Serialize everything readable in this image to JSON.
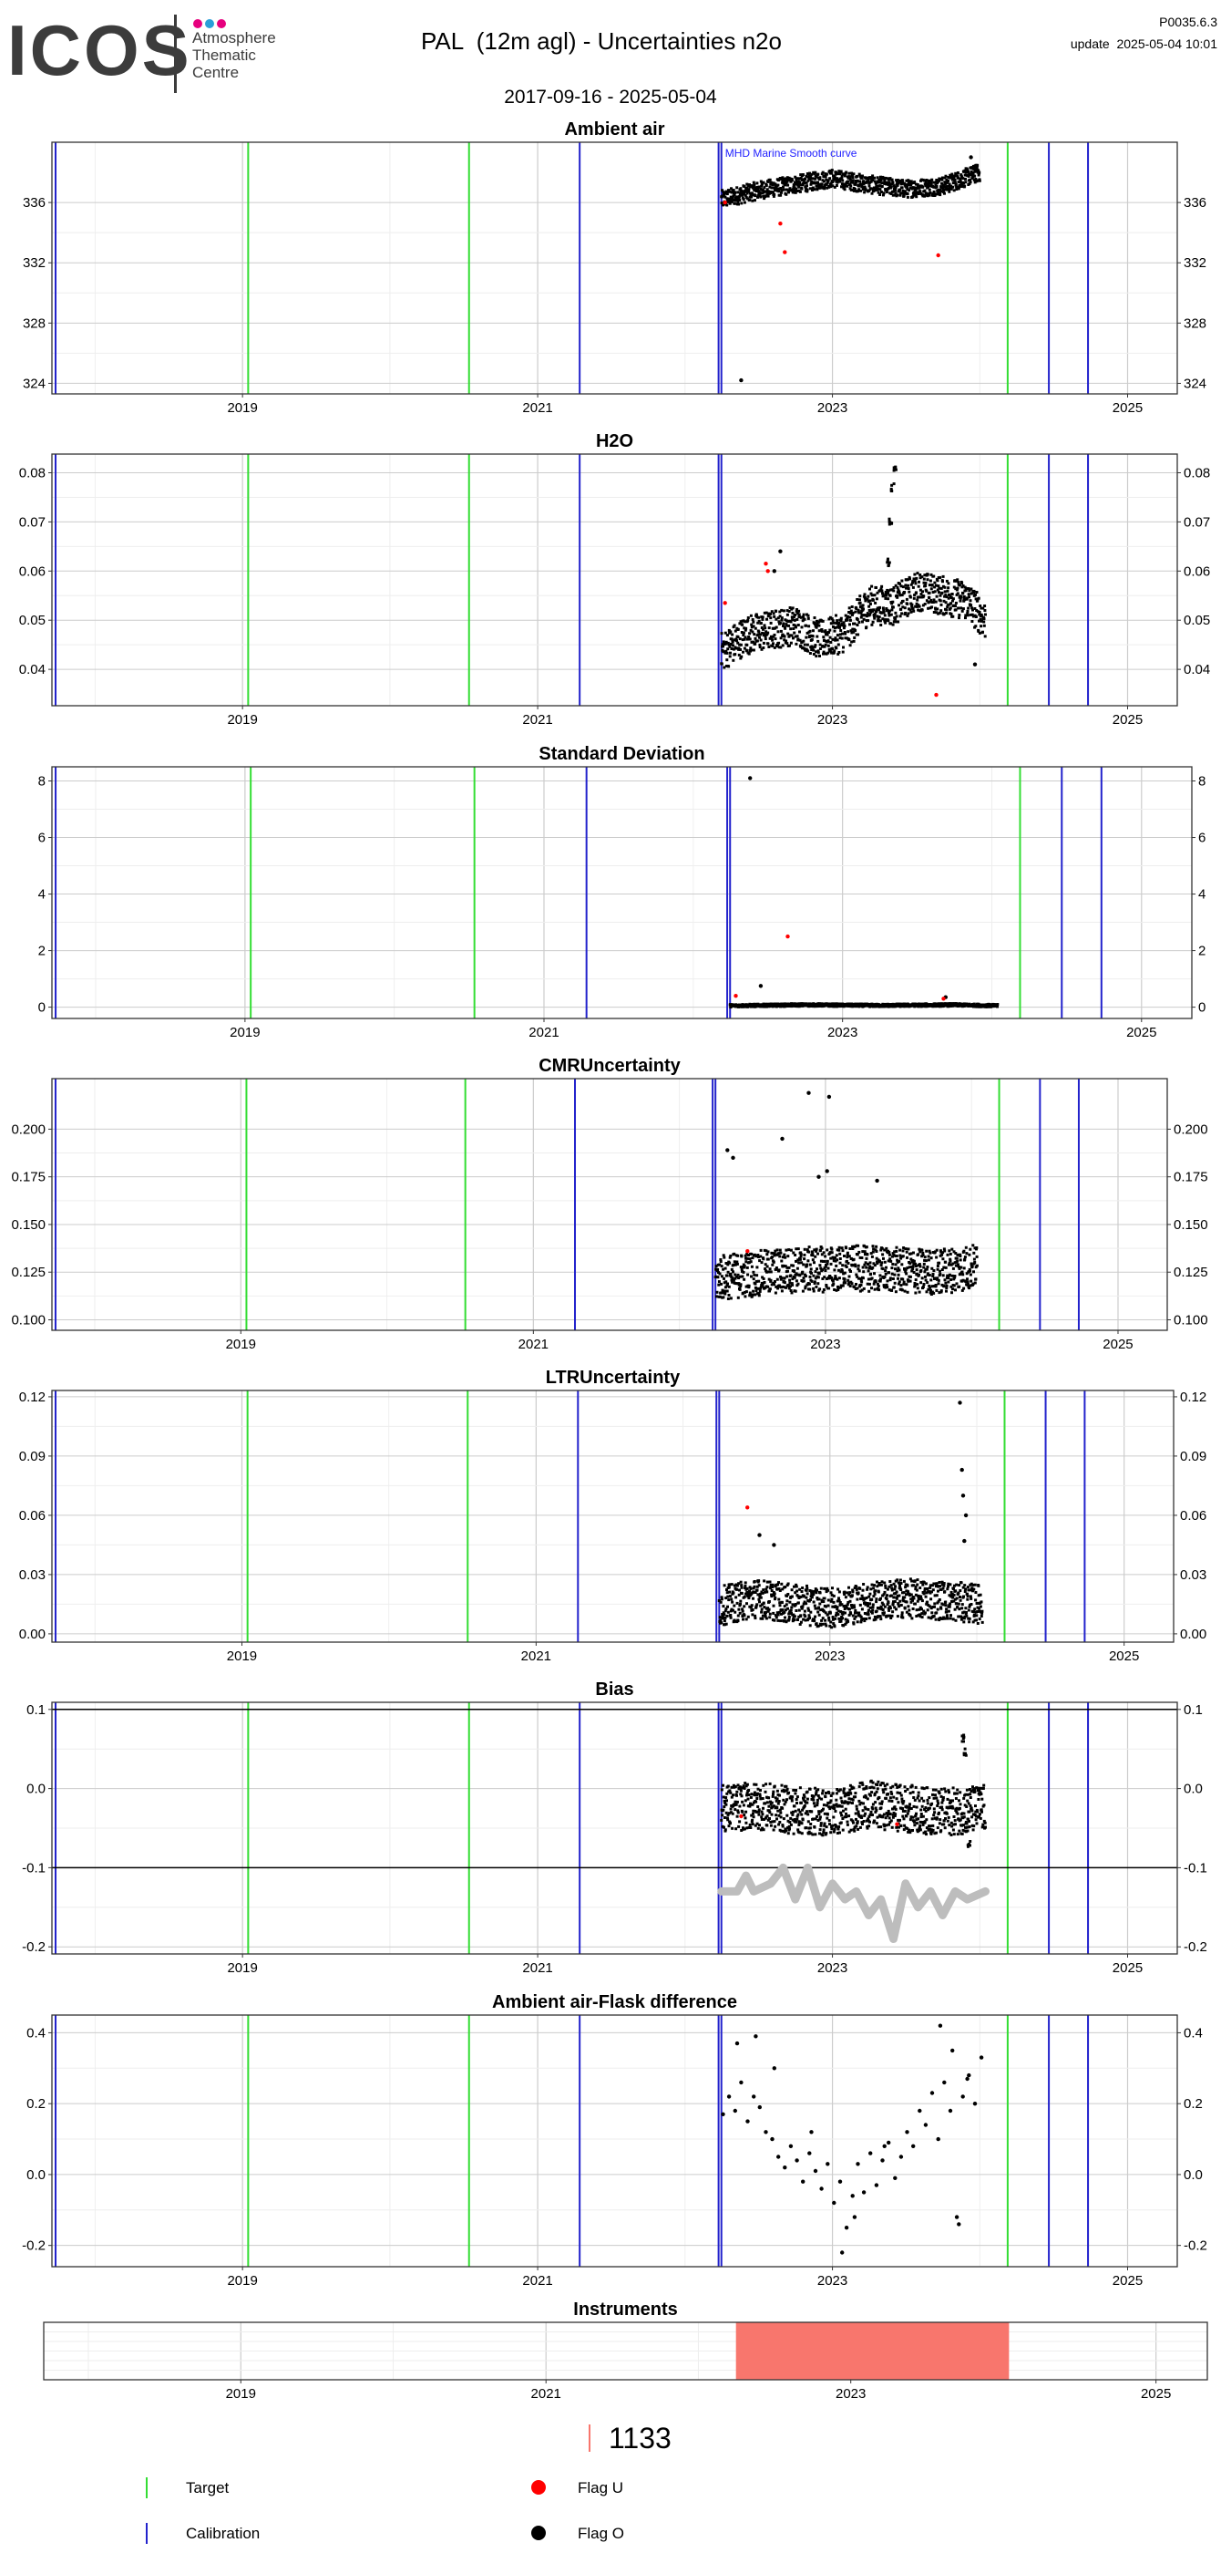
{
  "header": {
    "logo_word": "ICOS",
    "logo_line1": "Atmosphere",
    "logo_line2": "Thematic",
    "logo_line3": "Centre",
    "logo_dot_colors": [
      "#e6007e",
      "#2a9fd8",
      "#e6007e"
    ],
    "title": "PAL  (12m agl) - Uncertainties n2o",
    "date_range": "2017-09-16 - 2025-05-04",
    "version": "P0035.6.3",
    "update": "update  2025-05-04 10:01"
  },
  "colors": {
    "target": "#33dd33",
    "calibration": "#2222cc",
    "flag_u": "#ff0000",
    "flag_o": "#000000",
    "bias_smooth": "#bdbdbd",
    "instrument_bar": "#f8766d",
    "grid_major": "#cccccc",
    "grid_minor": "#eeeeee"
  },
  "chart_data": [
    {
      "type": "scatter",
      "title": "Ambient air",
      "annotation": "MHD Marine Smooth curve",
      "xlabel": "",
      "ylabel": "",
      "x_ticks": [
        "2019",
        "2021",
        "2023",
        "2025"
      ],
      "y_ticks": [
        324,
        328,
        332,
        336
      ],
      "ylim": [
        323.3,
        340
      ],
      "xlim": [
        "2017-09-16",
        "2025-05-04"
      ],
      "target_lines": [
        "2019-01-15",
        "2020-07-15",
        "2024-03-10"
      ],
      "calibration_lines": [
        "2017-09-25",
        "2021-04-15",
        "2022-03-25",
        "2022-04-01",
        "2024-06-20",
        "2024-09-25"
      ],
      "series": [
        {
          "name": "Flag O",
          "style": "band",
          "x": [
            "2022-04-01",
            "2022-07-01",
            "2022-10-01",
            "2023-01-01",
            "2023-04-01",
            "2023-07-01",
            "2023-10-01",
            "2024-01-01"
          ],
          "y": [
            336.2,
            336.8,
            337.2,
            337.6,
            337.2,
            336.9,
            337.1,
            338.0
          ],
          "spread": 0.6
        },
        {
          "name": "Flag O",
          "x": [
            "2022-05-20",
            "2023-12-10",
            "2023-12-20"
          ],
          "y": [
            324.2,
            339.0,
            338.4
          ]
        },
        {
          "name": "Flag U",
          "x": [
            "2022-04-10",
            "2022-08-25",
            "2022-09-05",
            "2023-09-20"
          ],
          "y": [
            336.0,
            334.6,
            332.7,
            332.5
          ]
        }
      ]
    },
    {
      "type": "scatter",
      "title": "H2O",
      "xlabel": "",
      "ylabel": "",
      "x_ticks": [
        "2019",
        "2021",
        "2023",
        "2025"
      ],
      "y_ticks": [
        0.04,
        0.05,
        0.06,
        0.07,
        0.08
      ],
      "ylim": [
        0.0326,
        0.0838
      ],
      "xlim": [
        "2017-09-16",
        "2025-05-04"
      ],
      "target_lines": [
        "2019-01-15",
        "2020-07-15",
        "2024-03-10"
      ],
      "calibration_lines": [
        "2017-09-25",
        "2021-04-15",
        "2022-03-25",
        "2022-04-01",
        "2024-06-20",
        "2024-09-25"
      ],
      "series": [
        {
          "name": "Flag O",
          "style": "band",
          "x": [
            "2022-04-01",
            "2022-06-01",
            "2022-08-01",
            "2022-10-01",
            "2022-12-01",
            "2023-02-01",
            "2023-04-01",
            "2023-06-01",
            "2023-08-01",
            "2023-10-01",
            "2023-12-01",
            "2024-01-15"
          ],
          "y": [
            0.0435,
            0.047,
            0.048,
            0.049,
            0.046,
            0.0475,
            0.053,
            0.053,
            0.056,
            0.055,
            0.054,
            0.05
          ],
          "spread": 0.004
        },
        {
          "name": "Flag O",
          "style": "spike",
          "x": [
            "2023-05-15",
            "2023-05-20",
            "2023-05-25",
            "2023-05-30",
            "2023-06-05"
          ],
          "y": [
            0.055,
            0.062,
            0.07,
            0.077,
            0.081
          ]
        },
        {
          "name": "Flag O",
          "x": [
            "2022-08-25",
            "2022-08-10",
            "2023-12-20"
          ],
          "y": [
            0.064,
            0.06,
            0.041
          ]
        },
        {
          "name": "Flag U",
          "x": [
            "2022-04-10",
            "2022-07-20",
            "2022-07-25",
            "2023-09-15"
          ],
          "y": [
            0.0535,
            0.0615,
            0.06,
            0.0348
          ]
        }
      ]
    },
    {
      "type": "scatter",
      "title": "Standard Deviation",
      "xlabel": "",
      "ylabel": "",
      "x_ticks": [
        "2019",
        "2021",
        "2023",
        "2025"
      ],
      "y_ticks": [
        0,
        2,
        4,
        6,
        8
      ],
      "ylim": [
        -0.4,
        8.5
      ],
      "xlim": [
        "2017-09-16",
        "2025-05-04"
      ],
      "target_lines": [
        "2019-01-15",
        "2020-07-15",
        "2024-03-10"
      ],
      "calibration_lines": [
        "2017-09-25",
        "2021-04-15",
        "2022-03-25",
        "2022-04-01",
        "2024-06-20",
        "2024-09-25"
      ],
      "series": [
        {
          "name": "Flag O",
          "style": "band",
          "x": [
            "2022-04-01",
            "2022-10-01",
            "2023-04-01",
            "2023-10-01",
            "2024-01-15"
          ],
          "y": [
            0.05,
            0.08,
            0.06,
            0.08,
            0.05
          ],
          "spread": 0.05
        },
        {
          "name": "Flag O",
          "x": [
            "2022-05-20",
            "2022-06-15",
            "2023-09-10"
          ],
          "y": [
            8.1,
            0.75,
            0.35
          ]
        },
        {
          "name": "Flag U",
          "x": [
            "2022-04-15",
            "2022-08-20",
            "2023-09-05"
          ],
          "y": [
            0.4,
            2.5,
            0.3
          ]
        }
      ]
    },
    {
      "type": "scatter",
      "title": "CMRUncertainty",
      "xlabel": "",
      "ylabel": "",
      "x_ticks": [
        "2019",
        "2021",
        "2023",
        "2025"
      ],
      "y_ticks": [
        0.1,
        0.125,
        0.15,
        0.175,
        0.2
      ],
      "y_labels": [
        "0.100",
        "0.125",
        "0.150",
        "0.175",
        "0.200"
      ],
      "ylim": [
        0.0945,
        0.2265
      ],
      "xlim": [
        "2017-09-16",
        "2025-05-04"
      ],
      "target_lines": [
        "2019-01-15",
        "2020-07-15",
        "2024-03-10"
      ],
      "calibration_lines": [
        "2017-09-25",
        "2021-04-15",
        "2022-03-25",
        "2022-04-01",
        "2024-06-20",
        "2024-09-25"
      ],
      "series": [
        {
          "name": "Flag O",
          "style": "band",
          "x": [
            "2022-04-01",
            "2022-10-01",
            "2023-04-01",
            "2023-10-01",
            "2024-01-15"
          ],
          "y": [
            0.122,
            0.126,
            0.127,
            0.125,
            0.128
          ],
          "spread": 0.012
        },
        {
          "name": "Flag O",
          "x": [
            "2022-05-01",
            "2022-05-15",
            "2022-09-15",
            "2022-11-20",
            "2022-12-15",
            "2023-01-10",
            "2023-05-10",
            "2023-01-05"
          ],
          "y": [
            0.189,
            0.185,
            0.195,
            0.219,
            0.175,
            0.217,
            0.173,
            0.178
          ]
        },
        {
          "name": "Flag U",
          "x": [
            "2022-06-20"
          ],
          "y": [
            0.136
          ]
        }
      ]
    },
    {
      "type": "scatter",
      "title": "LTRUncertainty",
      "xlabel": "",
      "ylabel": "",
      "x_ticks": [
        "2019",
        "2021",
        "2023",
        "2025"
      ],
      "y_ticks": [
        0,
        0.03,
        0.06,
        0.09,
        0.12
      ],
      "y_labels": [
        "0.00",
        "0.03",
        "0.06",
        "0.09",
        "0.12"
      ],
      "ylim": [
        -0.0042,
        0.1232
      ],
      "xlim": [
        "2017-09-16",
        "2025-05-04"
      ],
      "target_lines": [
        "2019-01-15",
        "2020-07-15",
        "2024-03-10"
      ],
      "calibration_lines": [
        "2017-09-25",
        "2021-04-15",
        "2022-03-25",
        "2022-04-01",
        "2024-06-20",
        "2024-09-25"
      ],
      "series": [
        {
          "name": "Flag O",
          "style": "band",
          "x": [
            "2022-04-01",
            "2022-07-01",
            "2022-10-01",
            "2023-01-01",
            "2023-04-01",
            "2023-07-01",
            "2023-10-01",
            "2024-01-15"
          ],
          "y": [
            0.014,
            0.018,
            0.015,
            0.013,
            0.016,
            0.018,
            0.017,
            0.015
          ],
          "spread": 0.01
        },
        {
          "name": "Flag O",
          "x": [
            "2023-11-20",
            "2023-11-25",
            "2023-11-28",
            "2023-12-01",
            "2023-12-05",
            "2022-07-10",
            "2022-08-15"
          ],
          "y": [
            0.117,
            0.083,
            0.07,
            0.047,
            0.06,
            0.05,
            0.045
          ]
        },
        {
          "name": "Flag U",
          "x": [
            "2022-06-10"
          ],
          "y": [
            0.064
          ]
        }
      ]
    },
    {
      "type": "scatter",
      "title": "Bias",
      "xlabel": "",
      "ylabel": "",
      "x_ticks": [
        "2019",
        "2021",
        "2023",
        "2025"
      ],
      "y_ticks": [
        -0.2,
        -0.1,
        0,
        0.1
      ],
      "y_labels": [
        "-0.2",
        "-0.1",
        "0.0",
        "0.1"
      ],
      "ylim": [
        -0.209,
        0.109
      ],
      "xlim": [
        "2017-09-16",
        "2025-05-04"
      ],
      "ref_lines": [
        0.1,
        -0.1
      ],
      "target_lines": [
        "2019-01-15",
        "2020-07-15",
        "2024-03-10"
      ],
      "calibration_lines": [
        "2017-09-25",
        "2021-04-15",
        "2022-03-25",
        "2022-04-01",
        "2024-06-20",
        "2024-09-25"
      ],
      "series": [
        {
          "name": "Flag O",
          "style": "band",
          "x": [
            "2022-04-01",
            "2022-07-01",
            "2022-10-01",
            "2023-01-01",
            "2023-04-01",
            "2023-07-01",
            "2023-10-01",
            "2024-01-15"
          ],
          "y": [
            -0.025,
            -0.022,
            -0.028,
            -0.03,
            -0.02,
            -0.025,
            -0.03,
            -0.025
          ],
          "spread": 0.03
        },
        {
          "name": "Flag O",
          "style": "spike",
          "x": [
            "2023-11-20",
            "2023-11-25",
            "2023-11-30",
            "2023-12-05"
          ],
          "y": [
            0.065,
            0.045,
            -0.05,
            -0.07
          ]
        },
        {
          "name": "Flag U",
          "x": [
            "2022-05-20",
            "2023-06-10"
          ],
          "y": [
            -0.035,
            -0.045
          ]
        },
        {
          "name": "Smooth",
          "style": "line",
          "x": [
            "2022-04-01",
            "2022-05-10",
            "2022-06-01",
            "2022-06-20",
            "2022-08-01",
            "2022-09-01",
            "2022-10-01",
            "2022-11-01",
            "2022-12-01",
            "2023-01-01",
            "2023-02-01",
            "2023-03-01",
            "2023-04-01",
            "2023-05-01",
            "2023-06-01",
            "2023-07-01",
            "2023-08-01",
            "2023-09-01",
            "2023-10-01",
            "2023-11-01",
            "2023-12-01",
            "2024-01-15"
          ],
          "y": [
            -0.13,
            -0.13,
            -0.11,
            -0.13,
            -0.12,
            -0.1,
            -0.14,
            -0.1,
            -0.15,
            -0.12,
            -0.14,
            -0.13,
            -0.16,
            -0.14,
            -0.19,
            -0.12,
            -0.15,
            -0.13,
            -0.16,
            -0.13,
            -0.14,
            -0.13
          ]
        }
      ]
    },
    {
      "type": "scatter",
      "title": "Ambient air-Flask difference",
      "xlabel": "",
      "ylabel": "",
      "x_ticks": [
        "2019",
        "2021",
        "2023",
        "2025"
      ],
      "y_ticks": [
        -0.2,
        0,
        0.2,
        0.4
      ],
      "y_labels": [
        "-0.2",
        "0.0",
        "0.2",
        "0.4"
      ],
      "ylim": [
        -0.26,
        0.45
      ],
      "xlim": [
        "2017-09-16",
        "2025-05-04"
      ],
      "target_lines": [
        "2019-01-15",
        "2020-07-15",
        "2024-03-10"
      ],
      "calibration_lines": [
        "2017-09-25",
        "2021-04-15",
        "2022-03-25",
        "2022-04-01",
        "2024-06-20",
        "2024-09-25"
      ],
      "series": [
        {
          "name": "Flag O",
          "x": [
            "2022-04-05",
            "2022-04-20",
            "2022-05-05",
            "2022-05-20",
            "2022-06-05",
            "2022-06-20",
            "2022-07-05",
            "2022-07-20",
            "2022-08-05",
            "2022-08-20",
            "2022-09-05",
            "2022-09-20",
            "2022-10-05",
            "2022-10-20",
            "2022-11-05",
            "2022-11-20",
            "2022-12-05",
            "2022-12-20",
            "2023-01-05",
            "2023-01-20",
            "2023-02-05",
            "2023-02-20",
            "2023-03-05",
            "2023-03-20",
            "2023-04-05",
            "2023-04-20",
            "2023-05-05",
            "2023-05-20",
            "2023-06-05",
            "2023-06-20",
            "2023-07-05",
            "2023-07-20",
            "2023-08-05",
            "2023-08-20",
            "2023-09-05",
            "2023-09-20",
            "2023-10-05",
            "2023-10-20",
            "2023-11-05",
            "2023-11-20",
            "2023-12-05",
            "2023-12-20",
            "2024-01-05",
            "2022-05-10",
            "2022-08-10",
            "2022-11-10",
            "2023-01-25",
            "2023-02-25",
            "2023-09-25",
            "2023-10-25",
            "2022-06-25",
            "2023-12-01",
            "2023-11-10",
            "2023-05-10"
          ],
          "y": [
            0.17,
            0.22,
            0.18,
            0.26,
            0.15,
            0.22,
            0.19,
            0.12,
            0.1,
            0.05,
            0.02,
            0.08,
            0.04,
            -0.02,
            0.06,
            0.01,
            -0.04,
            0.03,
            -0.08,
            -0.02,
            -0.15,
            -0.06,
            0.03,
            -0.05,
            0.06,
            -0.03,
            0.04,
            0.09,
            -0.01,
            0.05,
            0.12,
            0.08,
            0.18,
            0.14,
            0.23,
            0.1,
            0.26,
            0.18,
            -0.12,
            0.22,
            0.28,
            0.2,
            0.33,
            0.37,
            0.3,
            0.12,
            -0.22,
            -0.12,
            0.42,
            0.35,
            0.39,
            0.27,
            -0.14,
            0.08
          ]
        }
      ]
    },
    {
      "type": "bar",
      "title": "Instruments",
      "xlabel": "",
      "ylabel": "",
      "x_ticks": [
        "2019",
        "2021",
        "2023",
        "2025"
      ],
      "xlim": [
        "2017-09-16",
        "2025-05-04"
      ],
      "categories": [
        "1133"
      ],
      "intervals": [
        {
          "instrument": "1133",
          "start": "2022-04-01",
          "end": "2024-01-15"
        }
      ]
    }
  ],
  "legend": {
    "instrument_id": "1133",
    "target_label": "Target",
    "calibration_label": "Calibration",
    "flag_u_label": "Flag U",
    "flag_o_label": "Flag O"
  }
}
